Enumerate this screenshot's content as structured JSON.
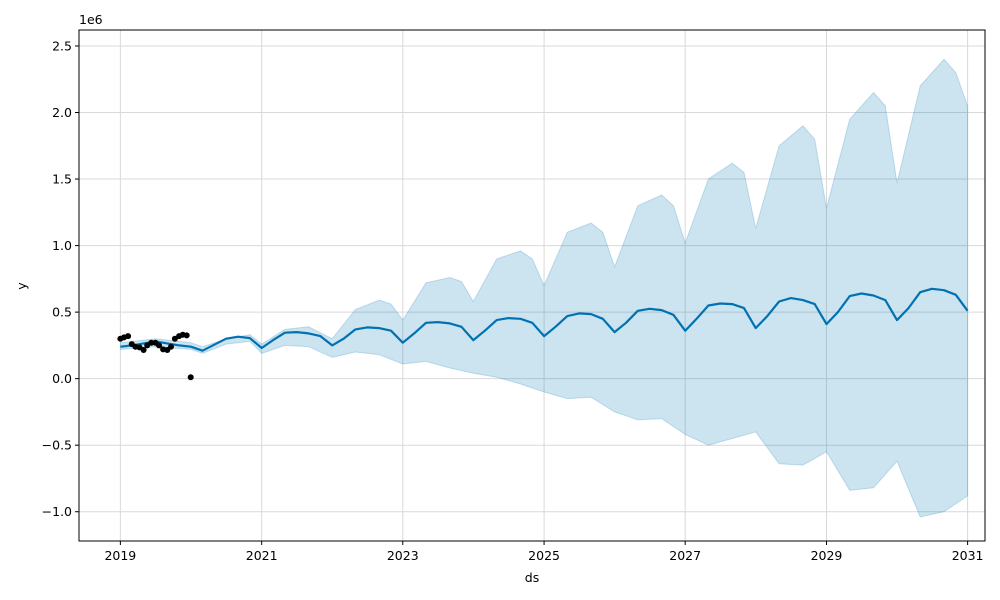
{
  "chart_data": {
    "type": "line",
    "title": "",
    "xlabel": "ds",
    "ylabel": "y",
    "y_offset_label": "1e6",
    "xlim": [
      "2018-06-01",
      "2031-04-01"
    ],
    "ylim": [
      -1.22,
      2.62
    ],
    "grid": true,
    "legend": "none",
    "x_ticks": [
      "2019",
      "2021",
      "2023",
      "2025",
      "2027",
      "2029",
      "2031"
    ],
    "y_ticks": [
      "−1.0",
      "−0.5",
      "0.0",
      "0.5",
      "1.0",
      "1.5",
      "2.0",
      "2.5"
    ],
    "y_tick_values": [
      -1.0,
      -0.5,
      0.0,
      0.5,
      1.0,
      1.5,
      2.0,
      2.5
    ],
    "colors": {
      "forecast_line": "#0072b2",
      "interval_fill": "#0072b2",
      "observed_points": "#000000",
      "grid": "#d9d9d9"
    },
    "series": [
      {
        "role": "forecast",
        "style": "line",
        "x": [
          "2019-01-01",
          "2019-03-01",
          "2019-05-01",
          "2019-07-01",
          "2019-09-01",
          "2019-11-01",
          "2020-01-01",
          "2020-03-01",
          "2020-05-01",
          "2020-07-01",
          "2020-09-01",
          "2020-11-01",
          "2021-01-01",
          "2021-03-01",
          "2021-05-01",
          "2021-07-01",
          "2021-09-01",
          "2021-11-01",
          "2022-01-01",
          "2022-03-01",
          "2022-05-01",
          "2022-07-01",
          "2022-09-01",
          "2022-11-01",
          "2023-01-01",
          "2023-03-01",
          "2023-05-01",
          "2023-07-01",
          "2023-09-01",
          "2023-11-01",
          "2024-01-01",
          "2024-03-01",
          "2024-05-01",
          "2024-07-01",
          "2024-09-01",
          "2024-11-01",
          "2025-01-01",
          "2025-03-01",
          "2025-05-01",
          "2025-07-01",
          "2025-09-01",
          "2025-11-01",
          "2026-01-01",
          "2026-03-01",
          "2026-05-01",
          "2026-07-01",
          "2026-09-01",
          "2026-11-01",
          "2027-01-01",
          "2027-03-01",
          "2027-05-01",
          "2027-07-01",
          "2027-09-01",
          "2027-11-01",
          "2028-01-01",
          "2028-03-01",
          "2028-05-01",
          "2028-07-01",
          "2028-09-01",
          "2028-11-01",
          "2029-01-01",
          "2029-03-01",
          "2029-05-01",
          "2029-07-01",
          "2029-09-01",
          "2029-11-01",
          "2030-01-01",
          "2030-03-01",
          "2030-05-01",
          "2030-07-01",
          "2030-09-01",
          "2030-11-01",
          "2031-01-01"
        ],
        "values": [
          0.24,
          0.25,
          0.265,
          0.28,
          0.265,
          0.25,
          0.24,
          0.21,
          0.255,
          0.3,
          0.315,
          0.305,
          0.23,
          0.29,
          0.345,
          0.35,
          0.34,
          0.32,
          0.25,
          0.3,
          0.37,
          0.385,
          0.38,
          0.36,
          0.27,
          0.34,
          0.42,
          0.425,
          0.415,
          0.39,
          0.29,
          0.36,
          0.44,
          0.455,
          0.45,
          0.42,
          0.32,
          0.39,
          0.47,
          0.49,
          0.485,
          0.45,
          0.35,
          0.42,
          0.51,
          0.525,
          0.515,
          0.48,
          0.36,
          0.45,
          0.55,
          0.565,
          0.56,
          0.53,
          0.38,
          0.47,
          0.58,
          0.605,
          0.59,
          0.56,
          0.41,
          0.5,
          0.62,
          0.64,
          0.625,
          0.59,
          0.44,
          0.53,
          0.65,
          0.675,
          0.665,
          0.63,
          0.51
        ]
      },
      {
        "role": "uncertainty_upper",
        "style": "band",
        "x": [
          "2019-01-01",
          "2019-07-01",
          "2020-01-01",
          "2020-03-01",
          "2020-07-01",
          "2020-11-01",
          "2021-01-01",
          "2021-05-01",
          "2021-09-01",
          "2022-01-01",
          "2022-05-01",
          "2022-09-01",
          "2022-11-01",
          "2023-01-01",
          "2023-05-01",
          "2023-09-01",
          "2023-11-01",
          "2024-01-01",
          "2024-05-01",
          "2024-09-01",
          "2024-11-01",
          "2025-01-01",
          "2025-05-01",
          "2025-09-01",
          "2025-11-01",
          "2026-01-01",
          "2026-05-01",
          "2026-09-01",
          "2026-11-01",
          "2027-01-01",
          "2027-05-01",
          "2027-09-01",
          "2027-11-01",
          "2028-01-01",
          "2028-05-01",
          "2028-09-01",
          "2028-11-01",
          "2029-01-01",
          "2029-05-01",
          "2029-09-01",
          "2029-11-01",
          "2030-01-01",
          "2030-05-01",
          "2030-09-01",
          "2030-11-01",
          "2031-01-01"
        ],
        "values": [
          0.27,
          0.3,
          0.27,
          0.24,
          0.3,
          0.33,
          0.26,
          0.37,
          0.39,
          0.3,
          0.52,
          0.59,
          0.56,
          0.44,
          0.72,
          0.76,
          0.73,
          0.58,
          0.9,
          0.96,
          0.9,
          0.7,
          1.1,
          1.17,
          1.1,
          0.84,
          1.3,
          1.38,
          1.3,
          1.02,
          1.5,
          1.62,
          1.55,
          1.13,
          1.75,
          1.9,
          1.8,
          1.28,
          1.95,
          2.15,
          2.05,
          1.47,
          2.2,
          2.4,
          2.3,
          2.05
        ]
      },
      {
        "role": "uncertainty_lower",
        "style": "band",
        "x": [
          "2019-01-01",
          "2019-07-01",
          "2020-01-01",
          "2020-03-01",
          "2020-07-01",
          "2020-11-01",
          "2021-01-01",
          "2021-05-01",
          "2021-09-01",
          "2022-01-01",
          "2022-05-01",
          "2022-09-01",
          "2023-01-01",
          "2023-05-01",
          "2023-09-01",
          "2024-01-01",
          "2024-05-01",
          "2024-09-01",
          "2025-01-01",
          "2025-05-01",
          "2025-09-01",
          "2026-01-01",
          "2026-05-01",
          "2026-09-01",
          "2027-01-01",
          "2027-05-01",
          "2027-09-01",
          "2028-01-01",
          "2028-05-01",
          "2028-09-01",
          "2029-01-01",
          "2029-05-01",
          "2029-09-01",
          "2030-01-01",
          "2030-05-01",
          "2030-09-01",
          "2031-01-01"
        ],
        "values": [
          0.22,
          0.24,
          0.22,
          0.19,
          0.26,
          0.28,
          0.19,
          0.25,
          0.24,
          0.16,
          0.2,
          0.18,
          0.11,
          0.13,
          0.08,
          0.04,
          0.01,
          -0.04,
          -0.1,
          -0.15,
          -0.14,
          -0.25,
          -0.31,
          -0.3,
          -0.42,
          -0.5,
          -0.45,
          -0.4,
          -0.64,
          -0.65,
          -0.55,
          -0.84,
          -0.82,
          -0.62,
          -1.04,
          -1.0,
          -0.88
        ]
      },
      {
        "role": "observed",
        "style": "points",
        "x": [
          "2019-01-01",
          "2019-01-20",
          "2019-02-10",
          "2019-03-01",
          "2019-03-20",
          "2019-04-10",
          "2019-05-01",
          "2019-05-20",
          "2019-06-10",
          "2019-07-01",
          "2019-07-20",
          "2019-08-10",
          "2019-09-01",
          "2019-09-20",
          "2019-10-10",
          "2019-11-01",
          "2019-11-20",
          "2019-12-10",
          "2019-12-31"
        ],
        "values": [
          0.3,
          0.31,
          0.32,
          0.26,
          0.24,
          0.235,
          0.215,
          0.25,
          0.27,
          0.27,
          0.25,
          0.22,
          0.215,
          0.24,
          0.3,
          0.32,
          0.33,
          0.325,
          0.01
        ]
      }
    ]
  }
}
